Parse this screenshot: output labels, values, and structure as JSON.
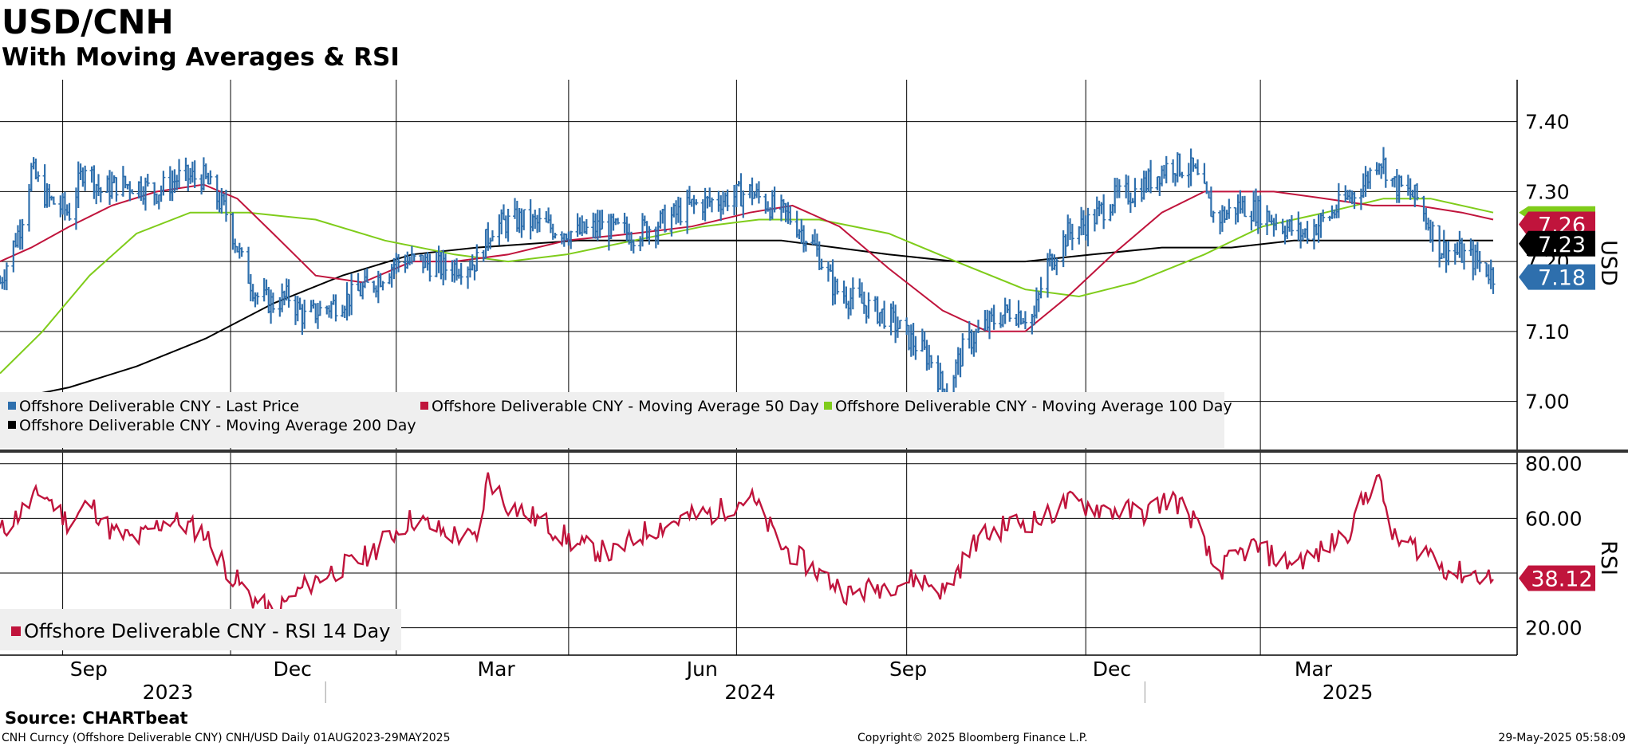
{
  "header": {
    "title": "USD/CNH",
    "subtitle": "With Moving Averages & RSI"
  },
  "footer": {
    "source": "Source: CHARTbeat",
    "info": "CNH Curncy (Offshore Deliverable CNY) CNH/USD  Daily 01AUG2023-29MAY2025",
    "copyright": "Copyright© 2025 Bloomberg Finance L.P.",
    "timestamp": "29-May-2025 05:58:09"
  },
  "colors": {
    "price": "#2e6fad",
    "ma50": "#c0143c",
    "ma100": "#7fcc1a",
    "ma200": "#000000",
    "rsi": "#c0143c",
    "grid": "#000000",
    "legend_bg": "#efefef"
  },
  "chart_data": [
    {
      "type": "bar",
      "ylabel": "USD",
      "ylim": [
        6.93,
        7.46
      ],
      "ticks": [
        "7.40",
        "7.30",
        "7.20",
        "7.10",
        "7.00"
      ],
      "tick_values": [
        7.4,
        7.3,
        7.2,
        7.1,
        7.0
      ],
      "x_months": [
        "Sep",
        "Dec",
        "Mar",
        "Jun",
        "Sep",
        "Dec",
        "Mar"
      ],
      "x_years": [
        "2023",
        "2024",
        "2025"
      ],
      "grid": true,
      "legend": [
        "Offshore Deliverable CNY - Last Price",
        "Offshore Deliverable CNY - Moving Average 50 Day",
        "Offshore Deliverable CNY - Moving Average 100 Day",
        "Offshore Deliverable CNY - Moving Average 200 Day"
      ],
      "last_labels": [
        "7.26",
        "7.23",
        "7.18"
      ],
      "series": [
        {
          "name": "Offshore Deliverable CNY - Last Price",
          "values": [
            [
              "2023-08-01",
              7.17
            ],
            [
              "2023-08-10",
              7.25
            ],
            [
              "2023-08-15",
              7.33
            ],
            [
              "2023-08-22",
              7.29
            ],
            [
              "2023-09-01",
              7.27
            ],
            [
              "2023-09-08",
              7.34
            ],
            [
              "2023-09-15",
              7.3
            ],
            [
              "2023-09-22",
              7.31
            ],
            [
              "2023-10-01",
              7.31
            ],
            [
              "2023-10-10",
              7.3
            ],
            [
              "2023-10-20",
              7.32
            ],
            [
              "2023-10-31",
              7.32
            ],
            [
              "2023-11-10",
              7.27
            ],
            [
              "2023-11-17",
              7.2
            ],
            [
              "2023-11-24",
              7.15
            ],
            [
              "2023-12-01",
              7.14
            ],
            [
              "2023-12-08",
              7.15
            ],
            [
              "2023-12-15",
              7.12
            ],
            [
              "2023-12-22",
              7.13
            ],
            [
              "2024-01-05",
              7.15
            ],
            [
              "2024-01-15",
              7.17
            ],
            [
              "2024-01-25",
              7.2
            ],
            [
              "2024-02-05",
              7.2
            ],
            [
              "2024-02-15",
              7.19
            ],
            [
              "2024-03-01",
              7.2
            ],
            [
              "2024-03-08",
              7.25
            ],
            [
              "2024-03-20",
              7.26
            ],
            [
              "2024-04-01",
              7.25
            ],
            [
              "2024-04-15",
              7.24
            ],
            [
              "2024-04-25",
              7.25
            ],
            [
              "2024-05-10",
              7.24
            ],
            [
              "2024-05-25",
              7.26
            ],
            [
              "2024-06-05",
              7.28
            ],
            [
              "2024-06-20",
              7.29
            ],
            [
              "2024-07-01",
              7.3
            ],
            [
              "2024-07-10",
              7.28
            ],
            [
              "2024-07-20",
              7.26
            ],
            [
              "2024-07-30",
              7.22
            ],
            [
              "2024-08-08",
              7.16
            ],
            [
              "2024-08-20",
              7.14
            ],
            [
              "2024-09-01",
              7.12
            ],
            [
              "2024-09-10",
              7.09
            ],
            [
              "2024-09-20",
              7.06
            ],
            [
              "2024-09-26",
              7.01
            ],
            [
              "2024-10-05",
              7.08
            ],
            [
              "2024-10-15",
              7.11
            ],
            [
              "2024-10-25",
              7.13
            ],
            [
              "2024-11-05",
              7.12
            ],
            [
              "2024-11-10",
              7.19
            ],
            [
              "2024-11-20",
              7.24
            ],
            [
              "2024-12-01",
              7.26
            ],
            [
              "2024-12-10",
              7.29
            ],
            [
              "2024-12-20",
              7.3
            ],
            [
              "2025-01-05",
              7.34
            ],
            [
              "2025-01-15",
              7.33
            ],
            [
              "2025-01-25",
              7.26
            ],
            [
              "2025-02-05",
              7.28
            ],
            [
              "2025-02-15",
              7.27
            ],
            [
              "2025-02-25",
              7.25
            ],
            [
              "2025-03-05",
              7.24
            ],
            [
              "2025-03-15",
              7.26
            ],
            [
              "2025-03-25",
              7.29
            ],
            [
              "2025-04-01",
              7.31
            ],
            [
              "2025-04-08",
              7.35
            ],
            [
              "2025-04-15",
              7.31
            ],
            [
              "2025-04-25",
              7.29
            ],
            [
              "2025-05-05",
              7.22
            ],
            [
              "2025-05-15",
              7.21
            ],
            [
              "2025-05-22",
              7.2
            ],
            [
              "2025-05-29",
              7.18
            ]
          ]
        },
        {
          "name": "Offshore Deliverable CNY - Moving Average 50 Day",
          "values": [
            [
              "2023-08-01",
              7.2
            ],
            [
              "2023-08-15",
              7.22
            ],
            [
              "2023-09-01",
              7.25
            ],
            [
              "2023-09-20",
              7.28
            ],
            [
              "2023-10-10",
              7.3
            ],
            [
              "2023-10-31",
              7.31
            ],
            [
              "2023-11-15",
              7.29
            ],
            [
              "2023-12-01",
              7.24
            ],
            [
              "2023-12-20",
              7.18
            ],
            [
              "2024-01-10",
              7.17
            ],
            [
              "2024-02-01",
              7.2
            ],
            [
              "2024-02-20",
              7.2
            ],
            [
              "2024-03-15",
              7.21
            ],
            [
              "2024-04-10",
              7.23
            ],
            [
              "2024-05-10",
              7.24
            ],
            [
              "2024-06-05",
              7.25
            ],
            [
              "2024-07-01",
              7.27
            ],
            [
              "2024-07-20",
              7.28
            ],
            [
              "2024-08-10",
              7.25
            ],
            [
              "2024-09-01",
              7.19
            ],
            [
              "2024-09-25",
              7.13
            ],
            [
              "2024-10-15",
              7.1
            ],
            [
              "2024-11-01",
              7.1
            ],
            [
              "2024-11-20",
              7.15
            ],
            [
              "2024-12-10",
              7.21
            ],
            [
              "2025-01-01",
              7.27
            ],
            [
              "2025-01-20",
              7.3
            ],
            [
              "2025-02-20",
              7.3
            ],
            [
              "2025-03-15",
              7.29
            ],
            [
              "2025-04-05",
              7.28
            ],
            [
              "2025-04-25",
              7.28
            ],
            [
              "2025-05-15",
              7.27
            ],
            [
              "2025-05-29",
              7.26
            ]
          ]
        },
        {
          "name": "Offshore Deliverable CNY - Moving Average 100 Day",
          "values": [
            [
              "2023-08-01",
              7.04
            ],
            [
              "2023-08-20",
              7.1
            ],
            [
              "2023-09-10",
              7.18
            ],
            [
              "2023-10-01",
              7.24
            ],
            [
              "2023-10-25",
              7.27
            ],
            [
              "2023-11-20",
              7.27
            ],
            [
              "2023-12-20",
              7.26
            ],
            [
              "2024-01-20",
              7.23
            ],
            [
              "2024-02-20",
              7.21
            ],
            [
              "2024-03-15",
              7.2
            ],
            [
              "2024-04-10",
              7.21
            ],
            [
              "2024-05-10",
              7.23
            ],
            [
              "2024-06-10",
              7.25
            ],
            [
              "2024-07-05",
              7.26
            ],
            [
              "2024-08-01",
              7.26
            ],
            [
              "2024-09-01",
              7.24
            ],
            [
              "2024-10-01",
              7.2
            ],
            [
              "2024-11-01",
              7.16
            ],
            [
              "2024-11-25",
              7.15
            ],
            [
              "2024-12-20",
              7.17
            ],
            [
              "2025-01-20",
              7.21
            ],
            [
              "2025-02-15",
              7.25
            ],
            [
              "2025-03-15",
              7.27
            ],
            [
              "2025-04-10",
              7.29
            ],
            [
              "2025-05-01",
              7.29
            ],
            [
              "2025-05-29",
              7.27
            ]
          ]
        },
        {
          "name": "Offshore Deliverable CNY - Moving Average 200 Day",
          "values": [
            [
              "2023-08-01",
              7.0
            ],
            [
              "2023-09-01",
              7.02
            ],
            [
              "2023-10-01",
              7.05
            ],
            [
              "2023-11-01",
              7.09
            ],
            [
              "2023-12-01",
              7.14
            ],
            [
              "2024-01-01",
              7.18
            ],
            [
              "2024-02-01",
              7.21
            ],
            [
              "2024-03-01",
              7.22
            ],
            [
              "2024-04-15",
              7.23
            ],
            [
              "2024-06-01",
              7.23
            ],
            [
              "2024-07-15",
              7.23
            ],
            [
              "2024-09-01",
              7.21
            ],
            [
              "2024-10-01",
              7.2
            ],
            [
              "2024-11-01",
              7.2
            ],
            [
              "2024-12-01",
              7.21
            ],
            [
              "2025-01-01",
              7.22
            ],
            [
              "2025-02-01",
              7.22
            ],
            [
              "2025-03-01",
              7.23
            ],
            [
              "2025-04-01",
              7.23
            ],
            [
              "2025-05-29",
              7.23
            ]
          ]
        }
      ]
    },
    {
      "type": "line",
      "ylabel": "RSI",
      "ylim": [
        10,
        84
      ],
      "ticks": [
        "80.00",
        "60.00",
        "20.00"
      ],
      "tick_values": [
        80,
        60,
        20
      ],
      "gridlines": [
        80,
        60,
        40,
        20
      ],
      "legend": [
        "Offshore Deliverable CNY - RSI 14 Day"
      ],
      "last_label": "38.12",
      "series": [
        {
          "name": "Offshore Deliverable CNY - RSI 14 Day",
          "values": [
            [
              "2023-08-01",
              55
            ],
            [
              "2023-08-10",
              62
            ],
            [
              "2023-08-20",
              70
            ],
            [
              "2023-09-01",
              58
            ],
            [
              "2023-09-10",
              66
            ],
            [
              "2023-09-20",
              55
            ],
            [
              "2023-10-01",
              52
            ],
            [
              "2023-10-15",
              60
            ],
            [
              "2023-10-31",
              55
            ],
            [
              "2023-11-10",
              42
            ],
            [
              "2023-11-20",
              32
            ],
            [
              "2023-12-01",
              25
            ],
            [
              "2023-12-15",
              35
            ],
            [
              "2023-12-25",
              40
            ],
            [
              "2024-01-10",
              45
            ],
            [
              "2024-01-20",
              52
            ],
            [
              "2024-02-01",
              60
            ],
            [
              "2024-02-15",
              55
            ],
            [
              "2024-03-01",
              52
            ],
            [
              "2024-03-06",
              75
            ],
            [
              "2024-03-15",
              65
            ],
            [
              "2024-04-01",
              58
            ],
            [
              "2024-04-15",
              50
            ],
            [
              "2024-05-01",
              47
            ],
            [
              "2024-05-15",
              55
            ],
            [
              "2024-06-01",
              60
            ],
            [
              "2024-06-15",
              62
            ],
            [
              "2024-07-01",
              68
            ],
            [
              "2024-07-15",
              50
            ],
            [
              "2024-08-01",
              40
            ],
            [
              "2024-08-15",
              32
            ],
            [
              "2024-09-01",
              36
            ],
            [
              "2024-09-15",
              38
            ],
            [
              "2024-09-26",
              33
            ],
            [
              "2024-10-10",
              52
            ],
            [
              "2024-10-25",
              58
            ],
            [
              "2024-11-10",
              60
            ],
            [
              "2024-11-20",
              66
            ],
            [
              "2024-12-10",
              63
            ],
            [
              "2024-12-25",
              62
            ],
            [
              "2025-01-05",
              68
            ],
            [
              "2025-01-15",
              60
            ],
            [
              "2025-01-25",
              40
            ],
            [
              "2025-02-10",
              50
            ],
            [
              "2025-02-25",
              44
            ],
            [
              "2025-03-10",
              46
            ],
            [
              "2025-03-25",
              55
            ],
            [
              "2025-04-07",
              76
            ],
            [
              "2025-04-15",
              52
            ],
            [
              "2025-04-30",
              48
            ],
            [
              "2025-05-10",
              40
            ],
            [
              "2025-05-20",
              40
            ],
            [
              "2025-05-29",
              38.12
            ]
          ]
        }
      ]
    }
  ]
}
